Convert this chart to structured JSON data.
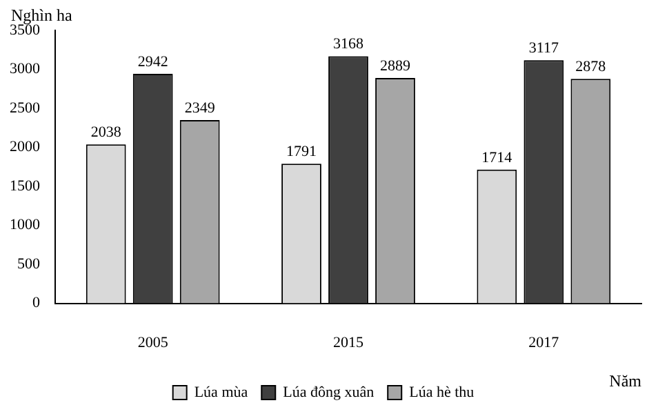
{
  "chart_data": {
    "type": "bar",
    "xlabel": "Năm",
    "ylabel": "Nghìn ha",
    "categories": [
      "2005",
      "2015",
      "2017"
    ],
    "series": [
      {
        "name": "Lúa mùa",
        "color": "#d9d9d9",
        "values": [
          2038,
          1791,
          1714
        ]
      },
      {
        "name": "Lúa đông xuân",
        "color": "#404040",
        "values": [
          2942,
          3168,
          3117
        ]
      },
      {
        "name": "Lúa hè thu",
        "color": "#a6a6a6",
        "values": [
          2349,
          2889,
          2878
        ]
      }
    ],
    "ylim": [
      0,
      3500
    ],
    "yticks": [
      0,
      500,
      1000,
      1500,
      2000,
      2500,
      3000,
      3500
    ],
    "grid": false,
    "legend": "bottom",
    "data_labels": true
  }
}
